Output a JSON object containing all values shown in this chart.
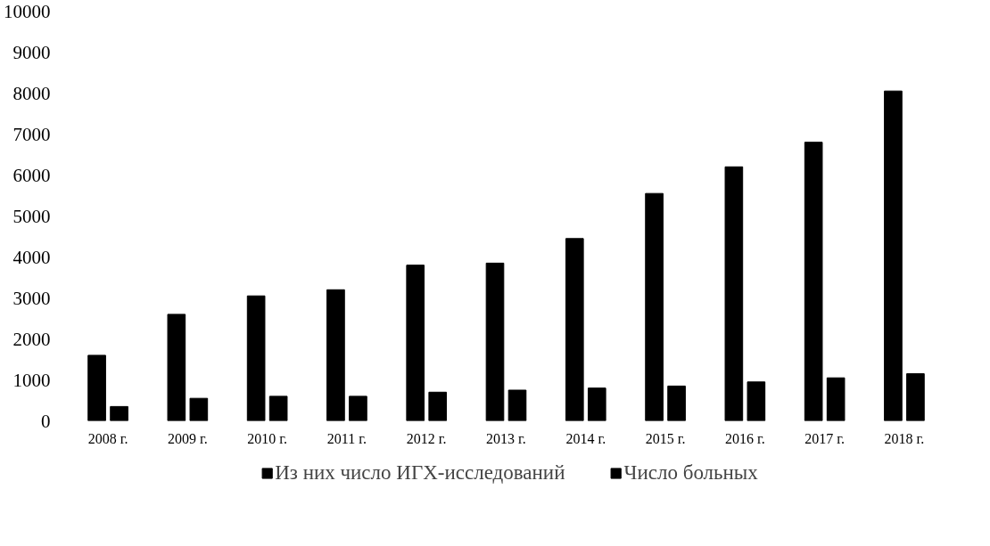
{
  "chart_data": {
    "type": "bar",
    "categories": [
      "2008 г.",
      "2009 г.",
      "2010 г.",
      "2011 г.",
      "2012 г.",
      "2013 г.",
      "2014 г.",
      "2015 г.",
      "2016 г.",
      "2017 г.",
      "2018 г."
    ],
    "series": [
      {
        "name": "Из них число ИГХ-исследований",
        "color": "#000000",
        "values": [
          1600,
          2600,
          3050,
          3200,
          3800,
          3850,
          4450,
          5550,
          6200,
          6800,
          8050
        ]
      },
      {
        "name": "Число больных",
        "color": "#000000",
        "values": [
          350,
          550,
          600,
          600,
          700,
          750,
          800,
          850,
          950,
          1050,
          1150
        ]
      }
    ],
    "ylim": [
      0,
      10000
    ],
    "yticks": [
      0,
      1000,
      2000,
      3000,
      4000,
      5000,
      6000,
      7000,
      8000,
      9000,
      10000
    ],
    "grid": false,
    "legend": "bottom"
  }
}
